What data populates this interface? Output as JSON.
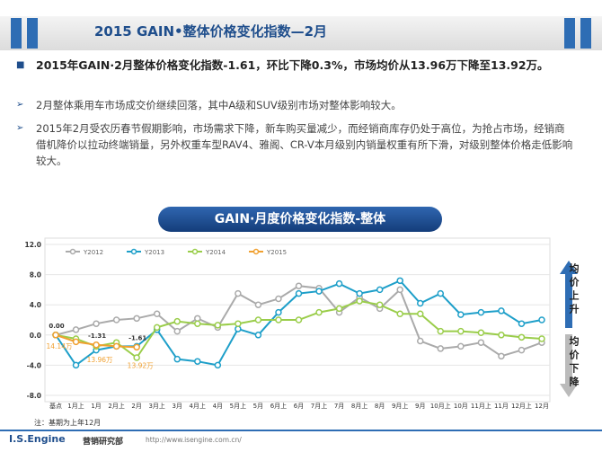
{
  "header": {
    "title": "2015 GAIN•整体价格变化指数—2月"
  },
  "bullets": [
    "2015年GAIN·2月整体价格变化指数-1.61，环比下降0.3%，市场均价从13.96万下降至13.92万。",
    "2月整体乘用车市场成交价继续回落，其中A级和SUV级别市场对整体影响较大。",
    "2015年2月受农历春节假期影响，市场需求下降，新车购买量减少，而经销商库存仍处于高位，为抢占市场，经销商借机降价以拉动终端销量，另外权重车型RAV4、雅阁、CR-V本月级别内销量权重有所下滑，对级别整体价格走低影响较大。"
  ],
  "chart_data": {
    "type": "line",
    "title": "GAIN·月度价格变化指数-整体",
    "categories": [
      "基点",
      "1月上",
      "1月",
      "2月上",
      "2月",
      "3月上",
      "3月",
      "4月上",
      "4月",
      "5月上",
      "5月",
      "6月上",
      "6月",
      "7月上",
      "7月",
      "8月上",
      "8月",
      "9月上",
      "9月",
      "10月上",
      "10月",
      "11月上",
      "11月",
      "12月上",
      "12月"
    ],
    "series": [
      {
        "name": "Y2012",
        "color": "#aaaaaa",
        "values": [
          0,
          0.7,
          1.5,
          2.0,
          2.2,
          2.8,
          0.5,
          2.2,
          1.0,
          5.5,
          4.0,
          4.8,
          6.5,
          6.2,
          3.0,
          5.0,
          3.5,
          6.0,
          -0.8,
          -1.8,
          -1.5,
          -1.0,
          -2.8,
          -2.0,
          -1.0
        ]
      },
      {
        "name": "Y2013",
        "color": "#1e9fc9",
        "values": [
          0,
          -4.0,
          -2.0,
          -1.5,
          -1.5,
          0.7,
          -3.2,
          -3.5,
          -4.0,
          0.8,
          0.0,
          3.0,
          5.5,
          5.8,
          6.8,
          5.5,
          6.0,
          7.2,
          4.2,
          5.5,
          2.7,
          3.0,
          3.2,
          1.5,
          2.0
        ]
      },
      {
        "name": "Y2014",
        "color": "#9acd4a",
        "values": [
          0,
          -0.5,
          -1.5,
          -1.0,
          -3.0,
          1.0,
          1.8,
          1.5,
          1.3,
          1.5,
          2.0,
          2.0,
          2.0,
          3.0,
          3.5,
          4.5,
          4.0,
          2.8,
          2.8,
          0.5,
          0.5,
          0.3,
          0.0,
          -0.3,
          -0.5
        ]
      },
      {
        "name": "Y2015",
        "color": "#f0a030",
        "values": [
          0,
          -0.9,
          -1.31,
          -1.5,
          -1.61,
          null,
          null,
          null,
          null,
          null,
          null,
          null,
          null,
          null,
          null,
          null,
          null,
          null,
          null,
          null,
          null,
          null,
          null,
          null,
          null
        ],
        "value_labels": [
          "0.00",
          null,
          "-1.31",
          null,
          "-1.61",
          null,
          null,
          null,
          null,
          null,
          null,
          null,
          null,
          null,
          null,
          null,
          null,
          null,
          null,
          null,
          null,
          null,
          null,
          null,
          null
        ],
        "price_labels": [
          "14.14万",
          null,
          "13.96万",
          null,
          "13.92万",
          null,
          null,
          null,
          null,
          null,
          null,
          null,
          null,
          null,
          null,
          null,
          null,
          null,
          null,
          null,
          null,
          null,
          null,
          null,
          null
        ]
      }
    ],
    "ylim": [
      -8,
      12
    ],
    "yticks": [
      {
        "value": -8,
        "label": "-8.0"
      },
      {
        "value": -4,
        "label": "-4.0"
      },
      {
        "value": 0,
        "label": "0.0"
      },
      {
        "value": 4,
        "label": "4.0"
      },
      {
        "value": 8,
        "label": "8.0"
      },
      {
        "value": 12,
        "label": "12.0"
      }
    ],
    "up_label": "均价上升",
    "down_label": "均价下降"
  },
  "footer": {
    "note": "注：基期为上年12月",
    "brand": "I.S.Engine",
    "dept": "营销研究部",
    "url": "http://www.isengine.com.cn/"
  }
}
